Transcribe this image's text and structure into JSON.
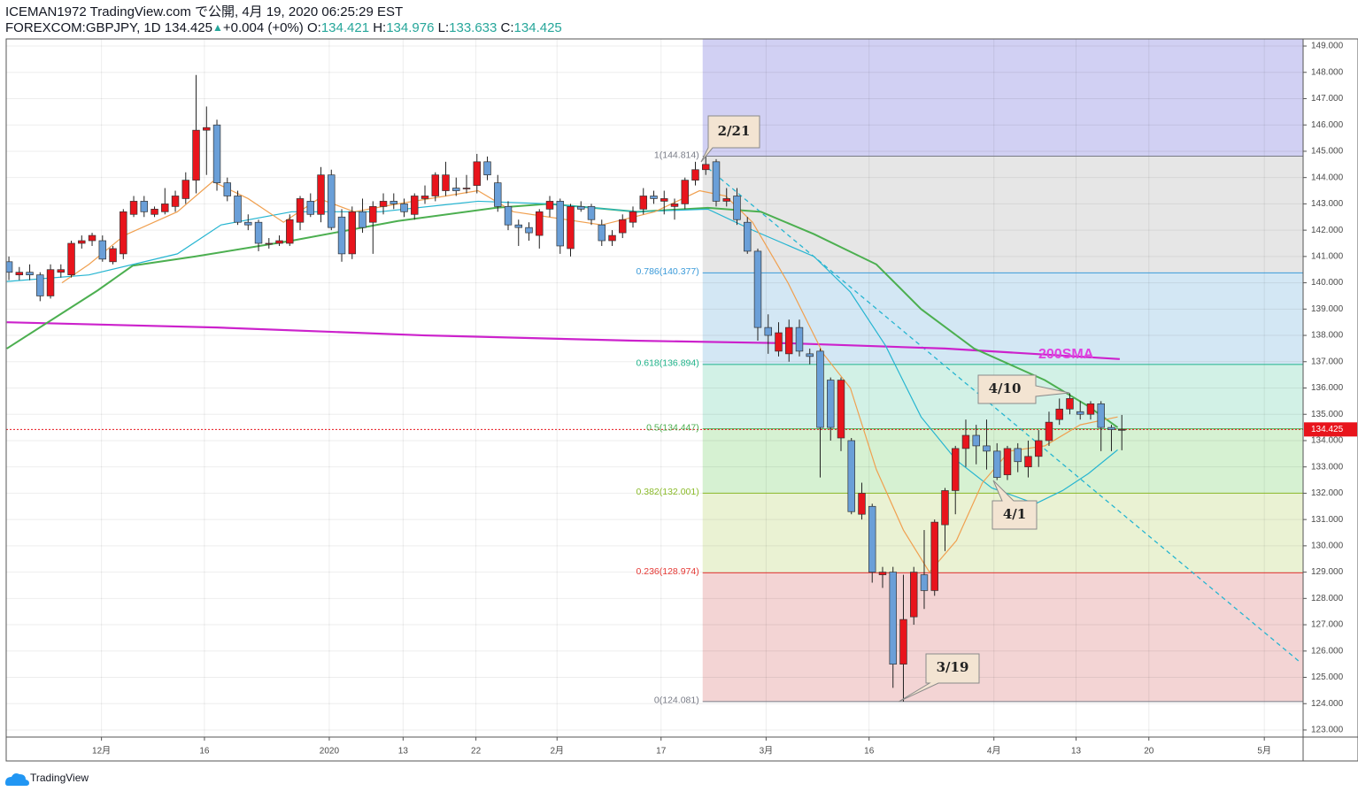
{
  "header": {
    "line1": "ICEMAN1972 TradingView.com で公開, 4月 19, 2020 06:25:29 EST",
    "symbol": "FOREXCOM:GBPJPY, 1D 134.425",
    "arrow": "▲",
    "change": "+0.004 (+0%)",
    "o_label": "O:",
    "o": "134.421",
    "h_label": "H:",
    "h": "134.976",
    "l_label": "L:",
    "l": "133.633",
    "c_label": "C:",
    "c": "134.425"
  },
  "footer": {
    "brand": "TradingView"
  },
  "chart_data": {
    "type": "candlestick",
    "up_color": "#e8141c",
    "down_color": "#6a9fd8",
    "xlim": [
      -0.26,
      124.43
    ],
    "ylim": [
      122.73,
      149.27
    ],
    "xticks": [
      {
        "value": 8.9,
        "label": "12月"
      },
      {
        "value": 18.8,
        "label": "16"
      },
      {
        "value": 30.8,
        "label": "2020"
      },
      {
        "value": 37.9,
        "label": "13"
      },
      {
        "value": 44.9,
        "label": "22"
      },
      {
        "value": 52.7,
        "label": "2月"
      },
      {
        "value": 62.7,
        "label": "17"
      },
      {
        "value": 72.8,
        "label": "3月"
      },
      {
        "value": 82.7,
        "label": "16"
      },
      {
        "value": 94.7,
        "label": "4月"
      },
      {
        "value": 102.6,
        "label": "13"
      },
      {
        "value": 109.6,
        "label": "20"
      },
      {
        "value": 120.7,
        "label": "5月"
      }
    ],
    "yticks": [
      {
        "value": 123,
        "label": "123.000"
      },
      {
        "value": 124,
        "label": "124.000"
      },
      {
        "value": 125,
        "label": "125.000"
      },
      {
        "value": 126,
        "label": "126.000"
      },
      {
        "value": 127,
        "label": "127.000"
      },
      {
        "value": 128,
        "label": "128.000"
      },
      {
        "value": 129,
        "label": "129.000"
      },
      {
        "value": 130,
        "label": "130.000"
      },
      {
        "value": 131,
        "label": "131.000"
      },
      {
        "value": 132,
        "label": "132.000"
      },
      {
        "value": 133,
        "label": "133.000"
      },
      {
        "value": 134,
        "label": "134.000"
      },
      {
        "value": 135,
        "label": "135.000"
      },
      {
        "value": 136,
        "label": "136.000"
      },
      {
        "value": 137,
        "label": "137.000"
      },
      {
        "value": 138,
        "label": "138.000"
      },
      {
        "value": 139,
        "label": "139.000"
      },
      {
        "value": 140,
        "label": "140.000"
      },
      {
        "value": 141,
        "label": "141.000"
      },
      {
        "value": 142,
        "label": "142.000"
      },
      {
        "value": 143,
        "label": "143.000"
      },
      {
        "value": 144,
        "label": "144.000"
      },
      {
        "value": 145,
        "label": "145.000"
      },
      {
        "value": 146,
        "label": "146.000"
      },
      {
        "value": 147,
        "label": "147.000"
      },
      {
        "value": 148,
        "label": "148.000"
      },
      {
        "value": 149,
        "label": "149.000"
      }
    ],
    "grid": true,
    "candles": [
      [
        140.8,
        141.0,
        140.1,
        140.4
      ],
      [
        140.3,
        140.6,
        140.1,
        140.4
      ],
      [
        140.4,
        140.7,
        140.1,
        140.3
      ],
      [
        140.3,
        140.4,
        139.3,
        139.5
      ],
      [
        139.5,
        140.7,
        139.4,
        140.5
      ],
      [
        140.4,
        140.7,
        140.2,
        140.5
      ],
      [
        140.3,
        141.6,
        140.2,
        141.5
      ],
      [
        141.5,
        141.8,
        141.3,
        141.6
      ],
      [
        141.6,
        141.9,
        141.4,
        141.8
      ],
      [
        141.6,
        141.8,
        140.8,
        140.9
      ],
      [
        140.8,
        141.4,
        140.7,
        141.3
      ],
      [
        141.1,
        142.8,
        140.9,
        142.7
      ],
      [
        142.6,
        143.3,
        142.5,
        143.1
      ],
      [
        143.1,
        143.3,
        142.5,
        142.7
      ],
      [
        142.6,
        142.9,
        142.5,
        142.8
      ],
      [
        142.7,
        143.6,
        142.6,
        143.0
      ],
      [
        142.9,
        143.5,
        142.7,
        143.3
      ],
      [
        143.2,
        144.2,
        143.0,
        143.9
      ],
      [
        143.9,
        147.9,
        143.4,
        145.8
      ],
      [
        145.8,
        146.7,
        144.1,
        145.9
      ],
      [
        146.0,
        146.2,
        143.5,
        143.8
      ],
      [
        143.8,
        144.0,
        143.1,
        143.3
      ],
      [
        143.3,
        143.5,
        142.2,
        142.3
      ],
      [
        142.3,
        142.6,
        142.0,
        142.2
      ],
      [
        142.3,
        142.4,
        141.2,
        141.5
      ],
      [
        141.5,
        141.7,
        141.3,
        141.5
      ],
      [
        141.5,
        141.8,
        141.4,
        141.6
      ],
      [
        141.5,
        142.6,
        141.4,
        142.4
      ],
      [
        142.3,
        143.3,
        142.0,
        143.2
      ],
      [
        143.1,
        143.4,
        142.5,
        142.6
      ],
      [
        142.6,
        144.4,
        142.3,
        144.1
      ],
      [
        144.1,
        144.3,
        142.0,
        142.1
      ],
      [
        142.5,
        142.8,
        140.8,
        141.1
      ],
      [
        141.1,
        142.9,
        140.9,
        142.7
      ],
      [
        142.7,
        143.2,
        141.9,
        142.1
      ],
      [
        142.3,
        143.1,
        141.1,
        142.9
      ],
      [
        142.9,
        143.4,
        142.6,
        143.1
      ],
      [
        143.1,
        143.4,
        142.8,
        143.0
      ],
      [
        143.0,
        143.2,
        142.5,
        142.7
      ],
      [
        142.6,
        143.4,
        142.4,
        143.3
      ],
      [
        143.2,
        143.7,
        143.0,
        143.3
      ],
      [
        143.3,
        144.2,
        143.1,
        144.1
      ],
      [
        143.5,
        144.6,
        143.3,
        144.1
      ],
      [
        143.6,
        144.0,
        143.3,
        143.5
      ],
      [
        143.6,
        144.1,
        143.4,
        143.6
      ],
      [
        143.7,
        144.9,
        143.4,
        144.6
      ],
      [
        144.6,
        144.8,
        143.9,
        144.1
      ],
      [
        143.8,
        144.1,
        142.7,
        142.9
      ],
      [
        142.9,
        143.1,
        142.0,
        142.2
      ],
      [
        142.2,
        142.4,
        141.4,
        142.1
      ],
      [
        142.1,
        142.3,
        141.6,
        141.9
      ],
      [
        141.8,
        142.8,
        141.3,
        142.7
      ],
      [
        142.8,
        143.3,
        142.5,
        143.1
      ],
      [
        143.1,
        143.2,
        141.1,
        141.4
      ],
      [
        141.3,
        143.0,
        141.0,
        142.9
      ],
      [
        142.9,
        143.1,
        142.7,
        142.8
      ],
      [
        142.9,
        143.0,
        142.2,
        142.4
      ],
      [
        142.2,
        142.4,
        141.4,
        141.6
      ],
      [
        141.6,
        142.0,
        141.4,
        141.8
      ],
      [
        141.9,
        142.6,
        141.7,
        142.4
      ],
      [
        142.3,
        142.9,
        142.1,
        142.7
      ],
      [
        142.8,
        143.6,
        142.6,
        143.3
      ],
      [
        143.3,
        143.5,
        143.0,
        143.2
      ],
      [
        143.1,
        143.5,
        142.6,
        143.2
      ],
      [
        142.9,
        143.2,
        142.4,
        143.0
      ],
      [
        143.0,
        144.0,
        142.8,
        143.9
      ],
      [
        143.9,
        144.6,
        143.7,
        144.3
      ],
      [
        144.3,
        144.814,
        144.1,
        144.5
      ],
      [
        144.6,
        144.7,
        142.9,
        143.1
      ],
      [
        143.1,
        143.6,
        142.9,
        143.2
      ],
      [
        143.3,
        143.6,
        142.2,
        142.4
      ],
      [
        142.3,
        142.5,
        141.1,
        141.2
      ],
      [
        141.2,
        141.3,
        137.8,
        138.3
      ],
      [
        138.3,
        138.8,
        137.3,
        138.0
      ],
      [
        137.4,
        138.5,
        137.2,
        138.1
      ],
      [
        137.3,
        138.6,
        137.0,
        138.3
      ],
      [
        138.3,
        138.6,
        137.2,
        137.4
      ],
      [
        137.3,
        137.5,
        136.9,
        137.2
      ],
      [
        137.4,
        137.5,
        132.6,
        134.5
      ],
      [
        136.3,
        136.4,
        134.0,
        134.5
      ],
      [
        134.1,
        136.4,
        133.6,
        136.3
      ],
      [
        134.0,
        134.1,
        131.2,
        131.3
      ],
      [
        131.2,
        132.4,
        131.0,
        132.0
      ],
      [
        131.5,
        131.6,
        128.6,
        129.0
      ],
      [
        128.9,
        129.2,
        128.4,
        129.0
      ],
      [
        129.0,
        129.2,
        124.6,
        125.5
      ],
      [
        125.5,
        128.9,
        124.081,
        127.2
      ],
      [
        127.3,
        129.2,
        127.0,
        129.0
      ],
      [
        128.9,
        130.6,
        127.6,
        128.3
      ],
      [
        128.3,
        131.0,
        128.1,
        130.9
      ],
      [
        130.8,
        132.2,
        129.8,
        132.1
      ],
      [
        132.1,
        133.8,
        131.2,
        133.7
      ],
      [
        133.7,
        134.8,
        133.0,
        134.2
      ],
      [
        134.2,
        134.6,
        133.1,
        133.8
      ],
      [
        133.8,
        134.8,
        132.9,
        133.6
      ],
      [
        133.6,
        133.9,
        132.5,
        132.6
      ],
      [
        132.7,
        133.8,
        132.5,
        133.7
      ],
      [
        133.7,
        133.9,
        132.8,
        133.2
      ],
      [
        133.0,
        134.0,
        132.6,
        133.4
      ],
      [
        133.4,
        134.4,
        133.0,
        134.0
      ],
      [
        134.0,
        135.1,
        133.8,
        134.7
      ],
      [
        134.8,
        135.6,
        134.6,
        135.2
      ],
      [
        135.2,
        135.8,
        135.0,
        135.6
      ],
      [
        135.1,
        135.5,
        134.8,
        135.0
      ],
      [
        135.0,
        135.5,
        134.8,
        135.4
      ],
      [
        135.4,
        135.5,
        133.6,
        134.5
      ],
      [
        134.5,
        134.6,
        133.6,
        134.42
      ],
      [
        134.421,
        134.976,
        133.633,
        134.425
      ]
    ],
    "lines": [
      {
        "color": "#cc22cc",
        "width": 2.2,
        "x": [
          -0.2,
          20,
          40,
          60,
          75,
          90,
          106.8
        ],
        "values": [
          138.5,
          138.3,
          138.0,
          137.8,
          137.7,
          137.5,
          137.1
        ]
      },
      {
        "color": "#4caf50",
        "width": 2,
        "x": [
          -0.2,
          8.5,
          11.9,
          17.9,
          27.2,
          37.4,
          46.8,
          51.9,
          60.4,
          67.2,
          72.3,
          77.4,
          83.4,
          87.7,
          92.8,
          99.6,
          103.8,
          106.6
        ],
        "values": [
          137.5,
          139.7,
          140.65,
          141.0,
          141.6,
          142.35,
          142.85,
          143.0,
          142.7,
          142.85,
          142.7,
          141.85,
          140.7,
          139.0,
          137.5,
          136.3,
          135.3,
          134.5
        ]
      },
      {
        "color": "#26b5d1",
        "width": 1.2,
        "x": [
          -0.2,
          7.7,
          16.2,
          20.4,
          27.2,
          35.7,
          45.1,
          51.9,
          60.4,
          67.2,
          71.5,
          77.4,
          80.9,
          84.3,
          87.7,
          91.1,
          94.5,
          98.7,
          101.3,
          103.8,
          106.6
        ],
        "values": [
          140.05,
          140.3,
          141.1,
          142.2,
          142.7,
          142.7,
          143.1,
          143.0,
          142.7,
          142.8,
          142.0,
          141.0,
          139.65,
          137.6,
          134.9,
          133.25,
          132.2,
          131.6,
          132.1,
          132.75,
          133.65
        ]
      },
      {
        "color": "#f0a050",
        "width": 1.2,
        "x": [
          5.1,
          7.7,
          11.1,
          16.2,
          19.6,
          23.0,
          26.4,
          29.8,
          33.2,
          37.4,
          45.1,
          48.5,
          51.9,
          57.0,
          62.1,
          66.4,
          68.9,
          71.5,
          74.9,
          78.3,
          80.9,
          83.4,
          86.0,
          88.5,
          91.1,
          93.6,
          96.2,
          99.6,
          103.0,
          106.6
        ],
        "values": [
          140.0,
          140.7,
          141.8,
          142.7,
          143.85,
          143.2,
          142.3,
          143.2,
          142.7,
          143.0,
          143.5,
          142.7,
          142.5,
          142.2,
          142.7,
          143.5,
          143.3,
          142.3,
          140.0,
          137.3,
          136.0,
          132.9,
          130.6,
          129.0,
          130.2,
          132.4,
          133.6,
          133.8,
          134.6,
          134.9
        ]
      }
    ],
    "trendline": {
      "color": "#26b5d1",
      "x": [
        67.2,
        124.1
      ],
      "y": [
        144.36,
        125.59
      ]
    },
    "fib": {
      "x_start": 66.7,
      "top_color": "#d1d0f3",
      "levels": [
        {
          "value": 144.814,
          "label": "1(144.814)",
          "color": "#787b86",
          "zone": "#e6e6e6"
        },
        {
          "value": 140.377,
          "label": "0.786(140.377)",
          "color": "#3a9ad9",
          "zone": "#d3e7f4"
        },
        {
          "value": 136.894,
          "label": "0.618(136.894)",
          "color": "#1fb38a",
          "zone": "#d2f1e6"
        },
        {
          "value": 134.447,
          "label": "0.5(134.447)",
          "color": "#4caf50",
          "zone": "#d6f1d2"
        },
        {
          "value": 132.001,
          "label": "0.382(132.001)",
          "color": "#8bbb2a",
          "zone": "#eaf2d3"
        },
        {
          "value": 128.974,
          "label": "0.236(128.974)",
          "color": "#e53935",
          "zone": "#f3d4d4"
        },
        {
          "value": 124.081,
          "label": "0(124.081)",
          "color": "#787b86",
          "zone": null
        }
      ]
    },
    "last_price": 134.425,
    "last_color": "#e8141c",
    "annotations": [
      "2/21",
      "4/10",
      "4/1",
      "3/19",
      "200SMA"
    ]
  }
}
